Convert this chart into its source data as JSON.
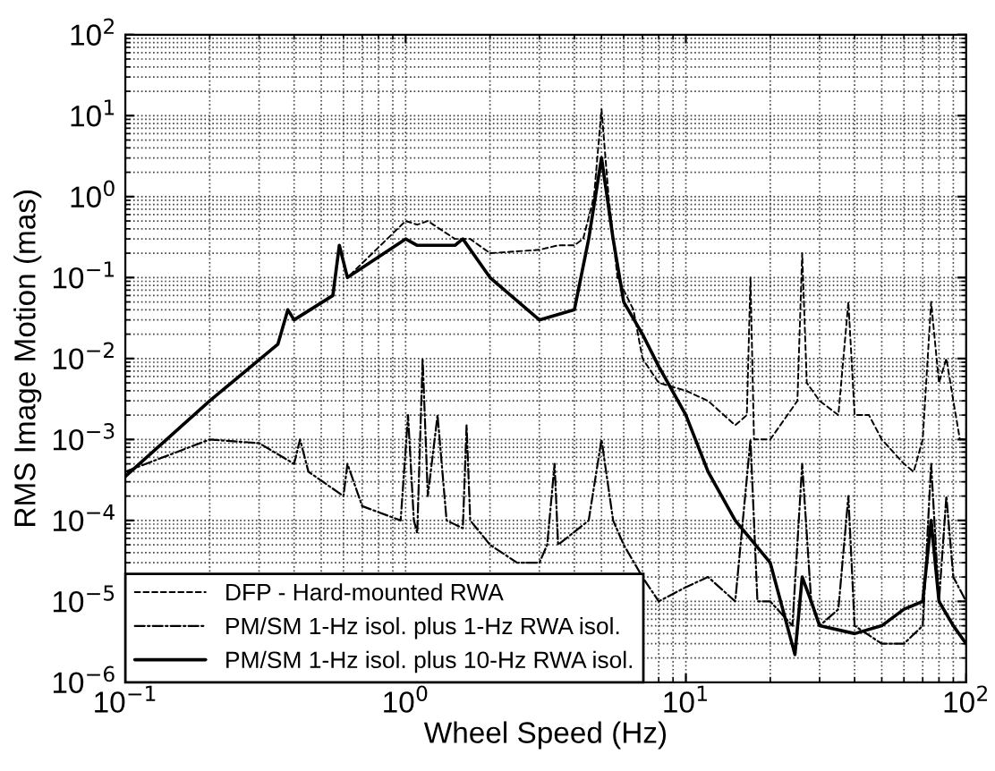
{
  "chart_data": {
    "type": "line",
    "xlabel": "Wheel Speed (Hz)",
    "ylabel": "RMS Image Motion (mas)",
    "log": "xy",
    "grid": true,
    "legend": "bottom left",
    "xlim": [
      0.1,
      100
    ],
    "ylim": [
      1e-06,
      100
    ],
    "xticks": [
      {
        "value": 0.1,
        "label": "10$^{−1}$"
      },
      {
        "value": 1,
        "label": "10$^{0}$"
      },
      {
        "value": 10,
        "label": "10$^{1}$"
      },
      {
        "value": 100,
        "label": "10$^{2}$"
      }
    ],
    "yticks": [
      {
        "value": 1e-06,
        "label": "10$^{−6}$"
      },
      {
        "value": 1e-05,
        "label": "10$^{−5}$"
      },
      {
        "value": 0.0001,
        "label": "10$^{−4}$"
      },
      {
        "value": 0.001,
        "label": "10$^{−3}$"
      },
      {
        "value": 0.01,
        "label": "10$^{−2}$"
      },
      {
        "value": 0.1,
        "label": "10$^{−1}$"
      },
      {
        "value": 1,
        "label": "10$^{0}$"
      },
      {
        "value": 10,
        "label": "10$^{1}$"
      },
      {
        "value": 100,
        "label": "10$^{2}$"
      }
    ],
    "series": [
      {
        "name": "DFP - Hard-mounted RWA",
        "color": "#000000",
        "line_style": "dashed",
        "x": [
          0.1,
          0.2,
          0.35,
          0.38,
          0.4,
          0.55,
          0.58,
          0.62,
          1.0,
          1.1,
          1.2,
          1.5,
          1.7,
          2,
          3,
          3.5,
          4,
          4.3,
          4.7,
          5.0,
          5.3,
          5.7,
          6.5,
          7,
          8,
          10,
          12,
          15,
          16.5,
          17,
          17.5,
          20,
          25,
          26,
          27,
          30,
          35,
          38,
          40,
          45,
          50,
          60,
          65,
          70,
          75,
          80,
          85,
          90,
          95,
          100
        ],
        "values": [
          0.00035,
          0.003,
          0.015,
          0.04,
          0.03,
          0.06,
          0.25,
          0.1,
          0.5,
          0.45,
          0.5,
          0.3,
          0.3,
          0.2,
          0.22,
          0.25,
          0.25,
          0.3,
          1.0,
          12,
          1,
          0.1,
          0.04,
          0.01,
          0.005,
          0.004,
          0.003,
          0.0015,
          0.002,
          0.1,
          0.001,
          0.001,
          0.003,
          0.2,
          0.005,
          0.003,
          0.002,
          0.05,
          0.002,
          0.002,
          0.001,
          0.0005,
          0.0004,
          0.001,
          0.05,
          0.005,
          0.01,
          0.003,
          0.001,
          0.001
        ]
      },
      {
        "name": "PM/SM 1-Hz isol. plus 1-Hz RWA isol.",
        "color": "#000000",
        "line_style": "dashdot",
        "x": [
          0.1,
          0.2,
          0.3,
          0.4,
          0.42,
          0.45,
          0.6,
          0.62,
          0.7,
          0.96,
          1.02,
          1.07,
          1.1,
          1.15,
          1.2,
          1.3,
          1.4,
          1.6,
          1.65,
          1.7,
          2,
          2.5,
          3,
          3.2,
          3.4,
          3.5,
          4.5,
          5.0,
          5.5,
          6,
          7,
          8,
          10,
          12,
          15,
          17,
          18,
          20,
          24,
          26,
          28,
          30,
          35,
          38,
          40,
          50,
          60,
          70,
          75,
          80,
          85,
          90,
          100
        ],
        "values": [
          0.0004,
          0.001,
          0.0009,
          0.0005,
          0.001,
          0.0004,
          0.0002,
          0.0005,
          0.00015,
          0.0001,
          0.002,
          0.0001,
          7e-05,
          0.01,
          0.0002,
          0.002,
          0.0001,
          8e-05,
          0.0015,
          0.0001,
          5e-05,
          3e-05,
          3e-05,
          5e-05,
          0.0005,
          5e-05,
          0.0001,
          0.001,
          0.0001,
          5e-05,
          2e-05,
          1e-05,
          1.5e-05,
          2e-05,
          1e-05,
          0.001,
          1e-05,
          1e-05,
          5e-06,
          0.0005,
          1e-05,
          5e-06,
          8e-06,
          0.0002,
          5e-06,
          3e-06,
          3e-06,
          5e-06,
          0.0005,
          1e-05,
          0.0002,
          2e-05,
          1e-05
        ]
      },
      {
        "name": "PM/SM 1-Hz isol. plus 10-Hz RWA isol.",
        "color": "#000000",
        "line_style": "solid",
        "x": [
          0.1,
          0.2,
          0.35,
          0.38,
          0.4,
          0.55,
          0.58,
          0.62,
          1.0,
          1.1,
          1.5,
          1.6,
          2,
          3,
          4,
          4.5,
          5,
          5.5,
          6,
          7,
          8,
          10,
          12,
          15,
          20,
          24.5,
          26,
          28,
          30,
          40,
          50,
          60,
          70,
          75,
          80,
          90,
          100
        ],
        "values": [
          0.00035,
          0.003,
          0.015,
          0.04,
          0.03,
          0.06,
          0.25,
          0.1,
          0.3,
          0.25,
          0.25,
          0.3,
          0.1,
          0.03,
          0.04,
          0.3,
          3,
          0.3,
          0.05,
          0.02,
          0.008,
          0.002,
          0.0004,
          0.0001,
          3e-05,
          2.2e-06,
          2e-05,
          1e-05,
          5e-06,
          4e-06,
          5e-06,
          8e-06,
          1e-05,
          0.0001,
          1e-05,
          5e-06,
          3e-06
        ]
      }
    ]
  }
}
